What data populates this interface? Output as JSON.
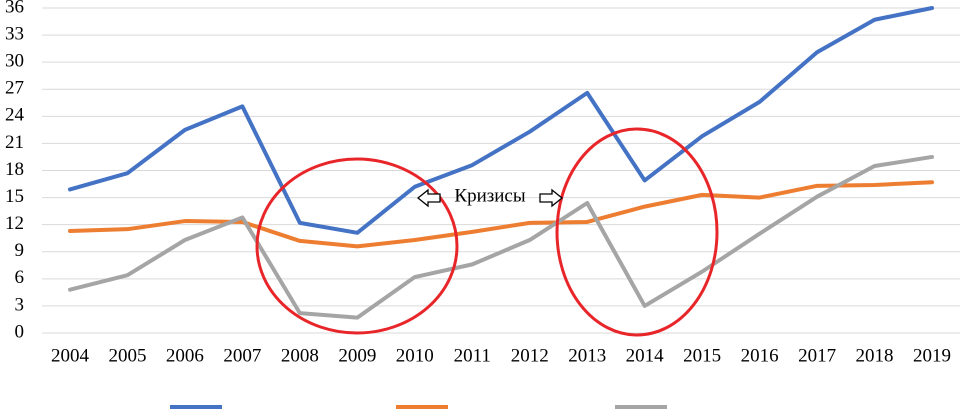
{
  "chart_data": {
    "type": "line",
    "x": [
      2004,
      2005,
      2006,
      2007,
      2008,
      2009,
      2010,
      2011,
      2012,
      2013,
      2014,
      2015,
      2016,
      2017,
      2018,
      2019
    ],
    "series": [
      {
        "color": "#4472c4",
        "values": [
          15.9,
          17.7,
          22.5,
          25.1,
          12.2,
          11.1,
          16.2,
          18.6,
          22.3,
          26.6,
          16.9,
          21.8,
          25.6,
          31.1,
          34.7,
          36.0
        ]
      },
      {
        "color": "#ed7d31",
        "values": [
          11.3,
          11.5,
          12.4,
          12.3,
          10.2,
          9.6,
          10.3,
          11.2,
          12.2,
          12.3,
          14.0,
          15.3,
          15.0,
          16.3,
          16.4,
          16.7
        ]
      },
      {
        "color": "#a5a5a5",
        "values": [
          4.8,
          6.4,
          10.3,
          12.8,
          2.2,
          1.7,
          6.2,
          7.6,
          10.3,
          14.4,
          3.0,
          6.8,
          11.0,
          15.1,
          18.5,
          19.5
        ]
      }
    ],
    "annotation": "Кризисы",
    "xlim": [
      2004,
      2019
    ],
    "ylim": [
      0,
      36
    ],
    "yticks": [
      0,
      3,
      6,
      9,
      12,
      15,
      18,
      21,
      24,
      27,
      30,
      33,
      36
    ],
    "grid": true
  }
}
